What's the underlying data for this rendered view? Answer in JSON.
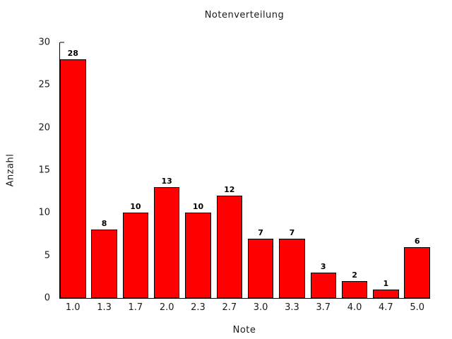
{
  "chart_data": {
    "type": "bar",
    "title": "Notenverteilung",
    "xlabel": "Note",
    "ylabel": "Anzahl",
    "categories": [
      "1.0",
      "1.3",
      "1.7",
      "2.0",
      "2.3",
      "2.7",
      "3.0",
      "3.3",
      "3.7",
      "4.0",
      "4.7",
      "5.0"
    ],
    "values": [
      28,
      8,
      10,
      13,
      10,
      12,
      7,
      7,
      3,
      2,
      1,
      6
    ],
    "bar_value_labels": [
      "28",
      "8",
      "10",
      "13",
      "10",
      "12",
      "7",
      "7",
      "3",
      "2",
      "1",
      "6"
    ],
    "ylim": [
      0,
      30
    ],
    "yticks": [
      0,
      5,
      10,
      15,
      20,
      25,
      30
    ],
    "grid": false,
    "legend": null,
    "colors": {
      "bar_fill": "#ff0000",
      "bar_border": "#000000",
      "axis": "#000000",
      "text": "#1a1a1a",
      "background": "#ffffff"
    }
  }
}
